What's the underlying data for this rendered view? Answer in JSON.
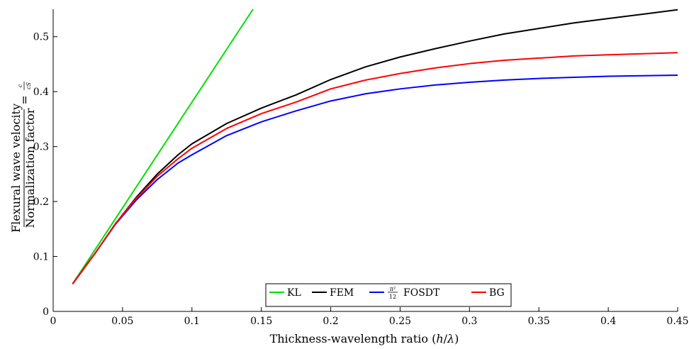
{
  "chart_data": {
    "type": "line",
    "xlabel": "Thickness-wavelength ratio (h/λ)",
    "ylabel": {
      "numerator": "Flexural wave velocity",
      "denominator": "Normalization factor",
      "equals": "=",
      "ratio_num": "c",
      "ratio_den": "cS"
    },
    "xlim": [
      0,
      0.45
    ],
    "ylim": [
      0,
      0.55
    ],
    "x_ticks": [
      0,
      0.05,
      0.1,
      0.15,
      0.2,
      0.25,
      0.3,
      0.35,
      0.4,
      0.45
    ],
    "x_tick_labels": [
      "0",
      "0.05",
      "0.1",
      "0.15",
      "0.2",
      "0.25",
      "0.3",
      "0.35",
      "0.4",
      "0.45"
    ],
    "y_ticks": [
      0,
      0.1,
      0.2,
      0.3,
      0.4,
      0.5
    ],
    "y_tick_labels": [
      "0",
      "0.1",
      "0.2",
      "0.3",
      "0.4",
      "0.5"
    ],
    "grid": false,
    "legend_placement": "bottom-center",
    "series": [
      {
        "name": "KL",
        "color": "#00e000",
        "x": [
          0.014,
          0.144
        ],
        "y": [
          0.05,
          0.55
        ]
      },
      {
        "name": "FEM",
        "color": "#000000",
        "x": [
          0.014,
          0.03,
          0.045,
          0.06,
          0.075,
          0.09,
          0.1,
          0.125,
          0.15,
          0.175,
          0.2,
          0.225,
          0.25,
          0.275,
          0.3,
          0.325,
          0.35,
          0.375,
          0.4,
          0.425,
          0.45
        ],
        "y": [
          0.05,
          0.105,
          0.16,
          0.208,
          0.25,
          0.285,
          0.305,
          0.342,
          0.37,
          0.394,
          0.422,
          0.445,
          0.463,
          0.478,
          0.492,
          0.505,
          0.515,
          0.525,
          0.533,
          0.541,
          0.549
        ]
      },
      {
        "name": "π²/12 FOSDT",
        "name_parts": {
          "coef_num": "π²",
          "coef_den": "12",
          "label": "FOSDT"
        },
        "color": "#0000ff",
        "x": [
          0.014,
          0.03,
          0.045,
          0.06,
          0.075,
          0.09,
          0.1,
          0.125,
          0.15,
          0.175,
          0.2,
          0.225,
          0.25,
          0.275,
          0.3,
          0.325,
          0.35,
          0.375,
          0.4,
          0.425,
          0.45
        ],
        "y": [
          0.05,
          0.105,
          0.159,
          0.203,
          0.24,
          0.27,
          0.285,
          0.32,
          0.345,
          0.365,
          0.383,
          0.396,
          0.405,
          0.412,
          0.417,
          0.421,
          0.424,
          0.426,
          0.428,
          0.429,
          0.43
        ]
      },
      {
        "name": "BG",
        "color": "#ff0000",
        "x": [
          0.014,
          0.03,
          0.045,
          0.06,
          0.075,
          0.09,
          0.1,
          0.125,
          0.15,
          0.175,
          0.2,
          0.225,
          0.25,
          0.275,
          0.3,
          0.325,
          0.35,
          0.375,
          0.4,
          0.425,
          0.45
        ],
        "y": [
          0.05,
          0.105,
          0.16,
          0.206,
          0.246,
          0.278,
          0.297,
          0.333,
          0.36,
          0.381,
          0.405,
          0.421,
          0.433,
          0.443,
          0.451,
          0.457,
          0.461,
          0.465,
          0.467,
          0.469,
          0.471
        ]
      }
    ]
  }
}
